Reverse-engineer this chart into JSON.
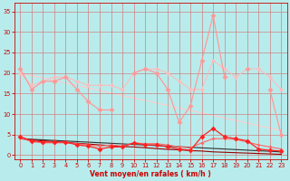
{
  "bg_color": "#b8ecec",
  "grid_color": "#d08080",
  "xlabel": "Vent moyen/en rafales ( km/h )",
  "xlabel_color": "#cc0000",
  "tick_color": "#cc0000",
  "x_ticks": [
    0,
    1,
    2,
    3,
    4,
    5,
    6,
    7,
    8,
    9,
    10,
    11,
    12,
    13,
    14,
    15,
    16,
    17,
    18,
    19,
    20,
    21,
    22,
    23
  ],
  "y_ticks": [
    0,
    5,
    10,
    15,
    20,
    25,
    30,
    35
  ],
  "xlim": [
    -0.5,
    23.5
  ],
  "ylim": [
    -1,
    37
  ],
  "line1_x": [
    0,
    1,
    2,
    3,
    4,
    5,
    6,
    7,
    8,
    9,
    10,
    11,
    12,
    13,
    14,
    15,
    16,
    17,
    18,
    19,
    20,
    21,
    22,
    23
  ],
  "line1_y": [
    21,
    16,
    18,
    18,
    19,
    16,
    13,
    11,
    11,
    null,
    20,
    21,
    20,
    16,
    8,
    12,
    23,
    34,
    19,
    null,
    21,
    null,
    16,
    5
  ],
  "line1_color": "#ff9999",
  "line1_lw": 0.9,
  "line1_ms": 3.0,
  "line2_x": [
    0,
    1,
    2,
    3,
    4,
    5,
    6,
    7,
    8,
    9,
    10,
    11,
    12,
    13,
    14,
    15,
    16,
    17,
    18,
    19,
    20,
    21,
    22,
    23
  ],
  "line2_y": [
    20,
    17,
    18,
    19,
    19,
    18,
    17,
    17,
    17,
    16,
    20,
    21,
    21,
    20,
    18,
    16,
    16,
    23,
    21,
    19,
    21,
    21,
    19,
    16
  ],
  "line2_color": "#ffbbbb",
  "line2_lw": 0.8,
  "line2_ms": 2.5,
  "line3_x": [
    0,
    23
  ],
  "line3_y": [
    20,
    6
  ],
  "line3_color": "#ffcccc",
  "line3_lw": 0.8,
  "line4_x": [
    0,
    1,
    2,
    3,
    4,
    5,
    6,
    7,
    8,
    9,
    10,
    11,
    12,
    13,
    14,
    15,
    16,
    17,
    18,
    19,
    20,
    21,
    22,
    23
  ],
  "line4_y": [
    4.5,
    3.5,
    3.2,
    3.2,
    3.2,
    2.5,
    2.2,
    1.5,
    2.0,
    2.0,
    3.0,
    2.5,
    2.5,
    2.0,
    1.5,
    1.2,
    4.5,
    6.5,
    4.5,
    4.0,
    3.5,
    1.5,
    1.2,
    1.0
  ],
  "line4_color": "#ff2222",
  "line4_lw": 0.9,
  "line4_ms": 3.0,
  "line5_x": [
    0,
    1,
    2,
    3,
    4,
    5,
    6,
    7,
    8,
    9,
    10,
    11,
    12,
    13,
    14,
    15,
    16,
    17,
    18,
    19,
    20,
    21,
    22,
    23
  ],
  "line5_y": [
    4.2,
    3.3,
    3.0,
    3.0,
    3.0,
    2.8,
    2.5,
    2.2,
    2.5,
    2.2,
    3.0,
    2.8,
    2.8,
    2.5,
    2.0,
    1.8,
    3.0,
    4.0,
    4.0,
    3.8,
    3.2,
    2.5,
    2.0,
    1.5
  ],
  "line5_color": "#ff6666",
  "line5_lw": 0.8,
  "line5_ms": 2.0,
  "line6_x": [
    0,
    1,
    2,
    3,
    4,
    5,
    6,
    7,
    8,
    9,
    10,
    11,
    12,
    13,
    14,
    15,
    16,
    17,
    18,
    19,
    20,
    21,
    22,
    23
  ],
  "line6_y": [
    4.0,
    3.7,
    3.5,
    3.3,
    3.1,
    2.9,
    2.7,
    2.5,
    2.3,
    2.1,
    2.0,
    1.8,
    1.6,
    1.4,
    1.3,
    1.1,
    1.0,
    0.8,
    0.7,
    0.6,
    0.5,
    0.4,
    0.3,
    0.2
  ],
  "line6_color": "#990000",
  "line6_lw": 0.8,
  "line7_x": [
    0,
    23
  ],
  "line7_y": [
    4.0,
    0.8
  ],
  "line7_color": "#333333",
  "line7_lw": 0.8
}
